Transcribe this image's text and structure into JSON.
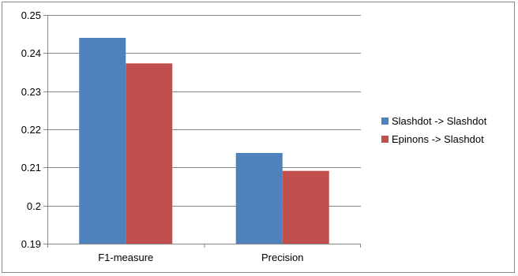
{
  "chart_data": {
    "type": "bar",
    "categories": [
      "F1-measure",
      "Precision"
    ],
    "series": [
      {
        "name": "Slashdot -> Slashdot",
        "values": [
          0.244,
          0.2138
        ],
        "color": "#4f81bd"
      },
      {
        "name": "Epinons -> Slashdot",
        "values": [
          0.2373,
          0.2091
        ],
        "color": "#c0504d"
      }
    ],
    "ylim": [
      0.19,
      0.25
    ],
    "yticks": [
      0.19,
      0.2,
      0.21,
      0.22,
      0.23,
      0.24,
      0.25
    ],
    "ytick_labels": [
      "0.19",
      "0.2",
      "0.21",
      "0.22",
      "0.23",
      "0.24",
      "0.25"
    ],
    "title": "",
    "xlabel": "",
    "ylabel": "",
    "grid": true,
    "legend_position": "right"
  }
}
